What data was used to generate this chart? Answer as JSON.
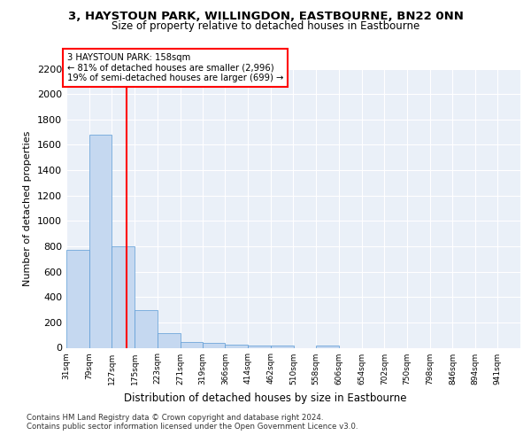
{
  "title1": "3, HAYSTOUN PARK, WILLINGDON, EASTBOURNE, BN22 0NN",
  "title2": "Size of property relative to detached houses in Eastbourne",
  "xlabel": "Distribution of detached houses by size in Eastbourne",
  "ylabel": "Number of detached properties",
  "bar_edges": [
    31,
    79,
    127,
    175,
    223,
    271,
    319,
    366,
    414,
    462,
    510,
    558,
    606,
    654,
    702,
    750,
    798,
    846,
    894,
    941,
    989
  ],
  "bar_heights": [
    775,
    1680,
    800,
    300,
    115,
    45,
    35,
    25,
    20,
    20,
    0,
    20,
    0,
    0,
    0,
    0,
    0,
    0,
    0,
    0
  ],
  "bar_color": "#c5d8f0",
  "bar_edgecolor": "#5b9bd5",
  "bar_linewidth": 0.5,
  "property_line_x": 158,
  "property_line_color": "red",
  "annotation_text": "3 HAYSTOUN PARK: 158sqm\n← 81% of detached houses are smaller (2,996)\n19% of semi-detached houses are larger (699) →",
  "annotation_box_color": "red",
  "ylim": [
    0,
    2200
  ],
  "yticks": [
    0,
    200,
    400,
    600,
    800,
    1000,
    1200,
    1400,
    1600,
    1800,
    2000,
    2200
  ],
  "bg_color": "#eaf0f8",
  "grid_color": "#ffffff",
  "footer1": "Contains HM Land Registry data © Crown copyright and database right 2024.",
  "footer2": "Contains public sector information licensed under the Open Government Licence v3.0."
}
